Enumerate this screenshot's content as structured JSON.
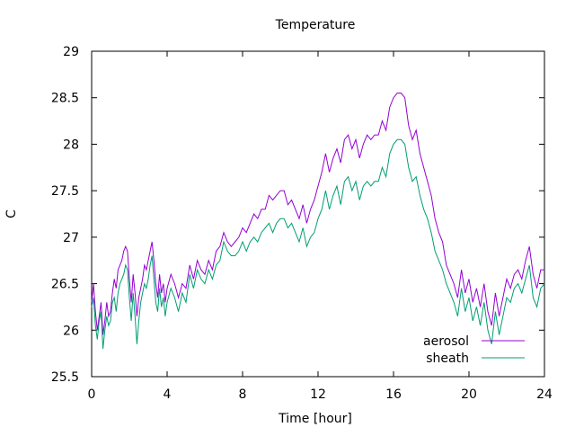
{
  "chart_data": {
    "type": "line",
    "title": "Temperature",
    "xlabel": "Time [hour]",
    "ylabel": "C",
    "xlim": [
      0,
      24
    ],
    "ylim": [
      25.5,
      29
    ],
    "xticks": [
      0,
      4,
      8,
      12,
      16,
      20,
      24
    ],
    "yticks": [
      25.5,
      26,
      26.5,
      27,
      27.5,
      28,
      28.5,
      29
    ],
    "grid": false,
    "legend_position": "bottom-right",
    "series": [
      {
        "name": "aerosol",
        "color": "#9400d3",
        "points": [
          [
            0.0,
            26.3
          ],
          [
            0.1,
            26.5
          ],
          [
            0.2,
            26.2
          ],
          [
            0.3,
            26.0
          ],
          [
            0.4,
            26.15
          ],
          [
            0.5,
            26.3
          ],
          [
            0.6,
            25.95
          ],
          [
            0.7,
            26.1
          ],
          [
            0.8,
            26.3
          ],
          [
            0.9,
            26.15
          ],
          [
            1.0,
            26.2
          ],
          [
            1.1,
            26.4
          ],
          [
            1.2,
            26.55
          ],
          [
            1.3,
            26.45
          ],
          [
            1.4,
            26.65
          ],
          [
            1.5,
            26.7
          ],
          [
            1.6,
            26.75
          ],
          [
            1.7,
            26.85
          ],
          [
            1.8,
            26.9
          ],
          [
            1.9,
            26.85
          ],
          [
            2.0,
            26.55
          ],
          [
            2.1,
            26.3
          ],
          [
            2.2,
            26.6
          ],
          [
            2.3,
            26.4
          ],
          [
            2.4,
            26.15
          ],
          [
            2.5,
            26.35
          ],
          [
            2.6,
            26.45
          ],
          [
            2.7,
            26.55
          ],
          [
            2.8,
            26.7
          ],
          [
            2.9,
            26.65
          ],
          [
            3.0,
            26.75
          ],
          [
            3.1,
            26.85
          ],
          [
            3.2,
            26.95
          ],
          [
            3.3,
            26.75
          ],
          [
            3.4,
            26.5
          ],
          [
            3.5,
            26.35
          ],
          [
            3.6,
            26.6
          ],
          [
            3.7,
            26.4
          ],
          [
            3.8,
            26.5
          ],
          [
            3.9,
            26.3
          ],
          [
            4.0,
            26.45
          ],
          [
            4.2,
            26.6
          ],
          [
            4.4,
            26.5
          ],
          [
            4.6,
            26.35
          ],
          [
            4.8,
            26.5
          ],
          [
            5.0,
            26.45
          ],
          [
            5.2,
            26.7
          ],
          [
            5.4,
            26.55
          ],
          [
            5.6,
            26.75
          ],
          [
            5.8,
            26.65
          ],
          [
            6.0,
            26.6
          ],
          [
            6.2,
            26.75
          ],
          [
            6.4,
            26.65
          ],
          [
            6.6,
            26.85
          ],
          [
            6.8,
            26.9
          ],
          [
            7.0,
            27.05
          ],
          [
            7.2,
            26.95
          ],
          [
            7.4,
            26.9
          ],
          [
            7.6,
            26.95
          ],
          [
            7.8,
            27.0
          ],
          [
            8.0,
            27.1
          ],
          [
            8.2,
            27.05
          ],
          [
            8.4,
            27.15
          ],
          [
            8.6,
            27.25
          ],
          [
            8.8,
            27.2
          ],
          [
            9.0,
            27.3
          ],
          [
            9.2,
            27.3
          ],
          [
            9.4,
            27.45
          ],
          [
            9.6,
            27.4
          ],
          [
            9.8,
            27.45
          ],
          [
            10.0,
            27.5
          ],
          [
            10.2,
            27.5
          ],
          [
            10.4,
            27.35
          ],
          [
            10.6,
            27.4
          ],
          [
            10.8,
            27.3
          ],
          [
            11.0,
            27.2
          ],
          [
            11.2,
            27.35
          ],
          [
            11.4,
            27.15
          ],
          [
            11.6,
            27.3
          ],
          [
            11.8,
            27.4
          ],
          [
            12.0,
            27.55
          ],
          [
            12.2,
            27.7
          ],
          [
            12.4,
            27.9
          ],
          [
            12.6,
            27.7
          ],
          [
            12.8,
            27.85
          ],
          [
            13.0,
            27.95
          ],
          [
            13.2,
            27.8
          ],
          [
            13.4,
            28.05
          ],
          [
            13.6,
            28.1
          ],
          [
            13.8,
            27.95
          ],
          [
            14.0,
            28.05
          ],
          [
            14.2,
            27.85
          ],
          [
            14.4,
            28.0
          ],
          [
            14.6,
            28.1
          ],
          [
            14.8,
            28.05
          ],
          [
            15.0,
            28.1
          ],
          [
            15.2,
            28.1
          ],
          [
            15.4,
            28.25
          ],
          [
            15.6,
            28.15
          ],
          [
            15.8,
            28.4
          ],
          [
            16.0,
            28.5
          ],
          [
            16.2,
            28.55
          ],
          [
            16.4,
            28.55
          ],
          [
            16.6,
            28.5
          ],
          [
            16.8,
            28.2
          ],
          [
            17.0,
            28.05
          ],
          [
            17.2,
            28.15
          ],
          [
            17.4,
            27.9
          ],
          [
            17.6,
            27.75
          ],
          [
            17.8,
            27.6
          ],
          [
            18.0,
            27.45
          ],
          [
            18.2,
            27.2
          ],
          [
            18.4,
            27.05
          ],
          [
            18.6,
            26.95
          ],
          [
            18.8,
            26.7
          ],
          [
            19.0,
            26.6
          ],
          [
            19.2,
            26.5
          ],
          [
            19.4,
            26.35
          ],
          [
            19.6,
            26.65
          ],
          [
            19.8,
            26.4
          ],
          [
            20.0,
            26.55
          ],
          [
            20.2,
            26.3
          ],
          [
            20.4,
            26.45
          ],
          [
            20.6,
            26.25
          ],
          [
            20.8,
            26.5
          ],
          [
            21.0,
            26.2
          ],
          [
            21.2,
            26.05
          ],
          [
            21.4,
            26.4
          ],
          [
            21.6,
            26.15
          ],
          [
            21.8,
            26.35
          ],
          [
            22.0,
            26.55
          ],
          [
            22.2,
            26.45
          ],
          [
            22.4,
            26.6
          ],
          [
            22.6,
            26.65
          ],
          [
            22.8,
            26.55
          ],
          [
            23.0,
            26.75
          ],
          [
            23.2,
            26.9
          ],
          [
            23.4,
            26.6
          ],
          [
            23.6,
            26.45
          ],
          [
            23.8,
            26.65
          ],
          [
            24.0,
            26.65
          ]
        ]
      },
      {
        "name": "sheath",
        "color": "#009e73",
        "points": [
          [
            0.0,
            26.25
          ],
          [
            0.1,
            26.35
          ],
          [
            0.2,
            26.05
          ],
          [
            0.3,
            25.9
          ],
          [
            0.4,
            26.1
          ],
          [
            0.5,
            26.2
          ],
          [
            0.6,
            25.8
          ],
          [
            0.7,
            26.0
          ],
          [
            0.8,
            26.15
          ],
          [
            0.9,
            26.05
          ],
          [
            1.0,
            26.1
          ],
          [
            1.1,
            26.3
          ],
          [
            1.2,
            26.35
          ],
          [
            1.3,
            26.2
          ],
          [
            1.4,
            26.4
          ],
          [
            1.5,
            26.5
          ],
          [
            1.6,
            26.55
          ],
          [
            1.7,
            26.6
          ],
          [
            1.8,
            26.7
          ],
          [
            1.9,
            26.65
          ],
          [
            2.0,
            26.35
          ],
          [
            2.1,
            26.1
          ],
          [
            2.2,
            26.4
          ],
          [
            2.3,
            26.15
          ],
          [
            2.4,
            25.85
          ],
          [
            2.5,
            26.1
          ],
          [
            2.6,
            26.3
          ],
          [
            2.7,
            26.4
          ],
          [
            2.8,
            26.5
          ],
          [
            2.9,
            26.45
          ],
          [
            3.0,
            26.55
          ],
          [
            3.1,
            26.7
          ],
          [
            3.2,
            26.8
          ],
          [
            3.3,
            26.55
          ],
          [
            3.4,
            26.3
          ],
          [
            3.5,
            26.2
          ],
          [
            3.6,
            26.45
          ],
          [
            3.7,
            26.25
          ],
          [
            3.8,
            26.35
          ],
          [
            3.9,
            26.15
          ],
          [
            4.0,
            26.3
          ],
          [
            4.2,
            26.45
          ],
          [
            4.4,
            26.35
          ],
          [
            4.6,
            26.2
          ],
          [
            4.8,
            26.4
          ],
          [
            5.0,
            26.3
          ],
          [
            5.2,
            26.6
          ],
          [
            5.4,
            26.45
          ],
          [
            5.6,
            26.65
          ],
          [
            5.8,
            26.55
          ],
          [
            6.0,
            26.5
          ],
          [
            6.2,
            26.65
          ],
          [
            6.4,
            26.55
          ],
          [
            6.6,
            26.7
          ],
          [
            6.8,
            26.75
          ],
          [
            7.0,
            26.95
          ],
          [
            7.2,
            26.85
          ],
          [
            7.4,
            26.8
          ],
          [
            7.6,
            26.8
          ],
          [
            7.8,
            26.85
          ],
          [
            8.0,
            26.95
          ],
          [
            8.2,
            26.85
          ],
          [
            8.4,
            26.95
          ],
          [
            8.6,
            27.0
          ],
          [
            8.8,
            26.95
          ],
          [
            9.0,
            27.05
          ],
          [
            9.2,
            27.1
          ],
          [
            9.4,
            27.15
          ],
          [
            9.6,
            27.05
          ],
          [
            9.8,
            27.15
          ],
          [
            10.0,
            27.2
          ],
          [
            10.2,
            27.2
          ],
          [
            10.4,
            27.1
          ],
          [
            10.6,
            27.15
          ],
          [
            10.8,
            27.05
          ],
          [
            11.0,
            26.95
          ],
          [
            11.2,
            27.1
          ],
          [
            11.4,
            26.9
          ],
          [
            11.6,
            27.0
          ],
          [
            11.8,
            27.05
          ],
          [
            12.0,
            27.2
          ],
          [
            12.2,
            27.3
          ],
          [
            12.4,
            27.5
          ],
          [
            12.6,
            27.3
          ],
          [
            12.8,
            27.45
          ],
          [
            13.0,
            27.55
          ],
          [
            13.2,
            27.35
          ],
          [
            13.4,
            27.6
          ],
          [
            13.6,
            27.65
          ],
          [
            13.8,
            27.5
          ],
          [
            14.0,
            27.6
          ],
          [
            14.2,
            27.4
          ],
          [
            14.4,
            27.55
          ],
          [
            14.6,
            27.6
          ],
          [
            14.8,
            27.55
          ],
          [
            15.0,
            27.6
          ],
          [
            15.2,
            27.6
          ],
          [
            15.4,
            27.75
          ],
          [
            15.6,
            27.65
          ],
          [
            15.8,
            27.9
          ],
          [
            16.0,
            28.0
          ],
          [
            16.2,
            28.05
          ],
          [
            16.4,
            28.05
          ],
          [
            16.6,
            28.0
          ],
          [
            16.8,
            27.75
          ],
          [
            17.0,
            27.6
          ],
          [
            17.2,
            27.65
          ],
          [
            17.4,
            27.45
          ],
          [
            17.6,
            27.3
          ],
          [
            17.8,
            27.2
          ],
          [
            18.0,
            27.05
          ],
          [
            18.2,
            26.85
          ],
          [
            18.4,
            26.75
          ],
          [
            18.6,
            26.65
          ],
          [
            18.8,
            26.5
          ],
          [
            19.0,
            26.4
          ],
          [
            19.2,
            26.3
          ],
          [
            19.4,
            26.15
          ],
          [
            19.6,
            26.45
          ],
          [
            19.8,
            26.2
          ],
          [
            20.0,
            26.35
          ],
          [
            20.2,
            26.1
          ],
          [
            20.4,
            26.25
          ],
          [
            20.6,
            26.05
          ],
          [
            20.8,
            26.3
          ],
          [
            21.0,
            26.0
          ],
          [
            21.2,
            25.85
          ],
          [
            21.4,
            26.2
          ],
          [
            21.6,
            25.95
          ],
          [
            21.8,
            26.15
          ],
          [
            22.0,
            26.35
          ],
          [
            22.2,
            26.3
          ],
          [
            22.4,
            26.45
          ],
          [
            22.6,
            26.5
          ],
          [
            22.8,
            26.4
          ],
          [
            23.0,
            26.55
          ],
          [
            23.2,
            26.7
          ],
          [
            23.4,
            26.35
          ],
          [
            23.6,
            26.25
          ],
          [
            23.8,
            26.45
          ],
          [
            24.0,
            26.5
          ]
        ]
      }
    ]
  }
}
